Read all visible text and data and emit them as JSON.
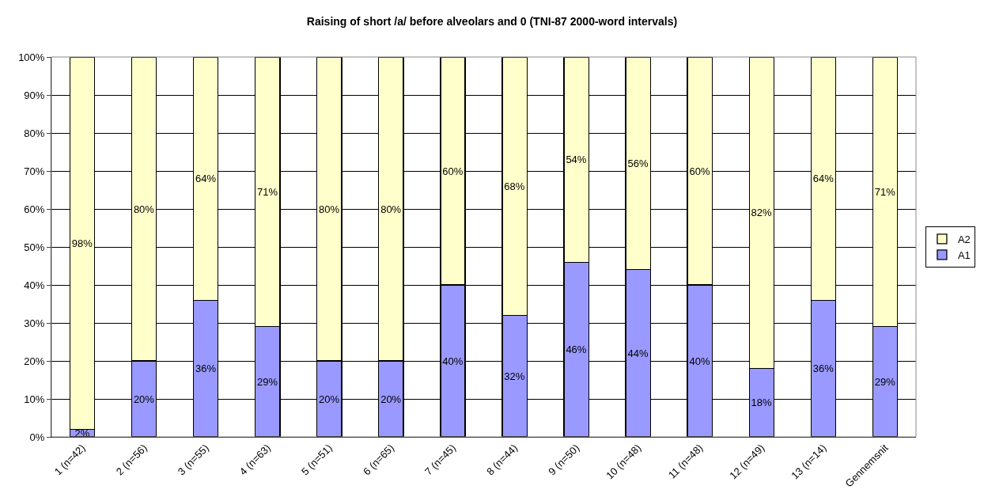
{
  "chart_data": {
    "type": "bar",
    "title": "Raising of short /a/ before alveolars and 0 (TNI-87 2000-word intervals)",
    "categories": [
      "1 (n=42)",
      "2 (n=56)",
      "3 (n=55)",
      "4 (n=63)",
      "5 (n=51)",
      "6 (n=65)",
      "7 (n=45)",
      "8 (n=44)",
      "9 (n=50)",
      "10 (n=48)",
      "11 (n=48)",
      "12 (n=49)",
      "13 (n=14)",
      "Gennemsnit"
    ],
    "series": [
      {
        "name": "A1",
        "color": "#9999ff",
        "values": [
          2,
          20,
          36,
          29,
          20,
          20,
          40,
          32,
          46,
          44,
          40,
          18,
          36,
          29
        ],
        "value_labels": [
          "2%",
          "20%",
          "36%",
          "29%",
          "20%",
          "20%",
          "40%",
          "32%",
          "46%",
          "44%",
          "40%",
          "18%",
          "36%",
          "29%"
        ]
      },
      {
        "name": "A2",
        "color": "#ffffcc",
        "values": [
          98,
          80,
          64,
          71,
          80,
          80,
          60,
          68,
          54,
          56,
          60,
          82,
          64,
          71
        ],
        "value_labels": [
          "98%",
          "80%",
          "64%",
          "71%",
          "80%",
          "80%",
          "60%",
          "68%",
          "54%",
          "56%",
          "60%",
          "82%",
          "64%",
          "71%"
        ]
      }
    ],
    "stacked": true,
    "grid": "y",
    "legend": "right",
    "ylim": [
      0,
      100
    ],
    "yticks": [
      {
        "value": 0,
        "label": "0%"
      },
      {
        "value": 10,
        "label": "10%"
      },
      {
        "value": 20,
        "label": "20%"
      },
      {
        "value": 30,
        "label": "30%"
      },
      {
        "value": 40,
        "label": "40%"
      },
      {
        "value": 50,
        "label": "50%"
      },
      {
        "value": 60,
        "label": "60%"
      },
      {
        "value": 70,
        "label": "70%"
      },
      {
        "value": 80,
        "label": "80%"
      },
      {
        "value": 90,
        "label": "90%"
      },
      {
        "value": 100,
        "label": "100%"
      }
    ]
  }
}
